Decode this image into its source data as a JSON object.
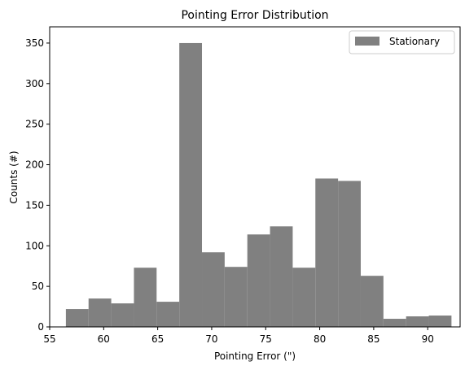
{
  "chart_data": {
    "type": "bar",
    "title": "Pointing Error Distribution",
    "xlabel": "Pointing Error (\")",
    "ylabel": "Counts (#)",
    "xlim": [
      55,
      93
    ],
    "ylim": [
      0,
      370
    ],
    "xticks": [
      55,
      60,
      65,
      70,
      75,
      80,
      85,
      90
    ],
    "yticks": [
      0,
      50,
      100,
      150,
      200,
      250,
      300,
      350
    ],
    "grid": false,
    "legend_position": "top-right",
    "series": [
      {
        "name": "Stationary",
        "color": "#808080",
        "bin_edges": [
          56.5,
          58.6,
          60.7,
          62.8,
          64.9,
          67.0,
          69.1,
          71.2,
          73.3,
          75.4,
          77.5,
          79.6,
          81.7,
          83.8,
          85.9,
          88.0,
          90.1,
          92.2
        ],
        "values": [
          22,
          35,
          29,
          73,
          31,
          350,
          92,
          74,
          114,
          124,
          73,
          183,
          180,
          63,
          10,
          13,
          14
        ]
      }
    ]
  }
}
